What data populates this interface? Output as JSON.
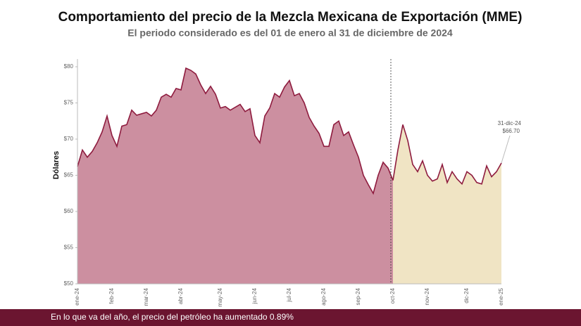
{
  "chart_data": {
    "type": "area",
    "title": "Comportamiento del precio de la Mezcla Mexicana de Exportación (MME)",
    "subtitle": "El periodo considerado es del 01 de enero al 31 de diciembre de 2024",
    "y_label": "Dólares",
    "categories": [
      "ene-24",
      null,
      null,
      null,
      null,
      null,
      null,
      "feb-24",
      null,
      null,
      null,
      null,
      null,
      null,
      "mar-24",
      null,
      null,
      null,
      null,
      null,
      null,
      "abr-24",
      null,
      null,
      null,
      null,
      null,
      null,
      null,
      "may-24",
      null,
      null,
      null,
      null,
      null,
      null,
      "jun-24",
      null,
      null,
      null,
      null,
      null,
      null,
      "jul-24",
      null,
      null,
      null,
      null,
      null,
      null,
      "ago-24",
      null,
      null,
      null,
      null,
      null,
      null,
      "sep-24",
      null,
      null,
      null,
      null,
      null,
      null,
      "oct-24",
      null,
      null,
      null,
      null,
      null,
      null,
      "nov-24",
      null,
      null,
      null,
      null,
      null,
      null,
      null,
      "dic-24",
      null,
      null,
      null,
      null,
      null,
      null,
      "ene-25"
    ],
    "series": [
      {
        "color": "#8e1b3e",
        "fill": "#cc8fa0",
        "values": [
          66.2,
          68.5,
          67.5,
          68.3,
          69.5,
          71,
          73.2,
          70.5,
          69,
          71.8,
          72,
          74,
          73.3,
          73.5,
          73.7,
          73.2,
          74,
          75.8,
          76.2,
          75.8,
          77,
          76.8,
          79.8,
          79.5,
          79,
          77.5,
          76.3,
          77.3,
          76.2,
          74.3,
          74.5,
          74,
          74.4,
          74.8,
          73.8,
          74.2,
          70.5,
          69.5,
          73.2,
          74.3,
          76.3,
          75.8,
          77.2,
          78.1,
          76,
          76.3,
          75,
          73,
          71.8,
          70.8,
          69,
          69,
          72,
          72.5,
          70.5,
          71,
          69.2,
          67.5,
          65,
          63.7,
          62.5,
          65,
          66.8,
          66,
          64.3,
          null,
          null,
          null,
          null,
          null,
          null,
          null,
          null,
          null,
          null,
          null,
          null,
          null,
          null,
          null,
          null,
          null,
          null,
          null,
          null,
          null,
          null
        ]
      },
      {
        "color": "#8e1b3e",
        "fill": "#f0e4c4",
        "values": [
          null,
          null,
          null,
          null,
          null,
          null,
          null,
          null,
          null,
          null,
          null,
          null,
          null,
          null,
          null,
          null,
          null,
          null,
          null,
          null,
          null,
          null,
          null,
          null,
          null,
          null,
          null,
          null,
          null,
          null,
          null,
          null,
          null,
          null,
          null,
          null,
          null,
          null,
          null,
          null,
          null,
          null,
          null,
          null,
          null,
          null,
          null,
          null,
          null,
          null,
          null,
          null,
          null,
          null,
          null,
          null,
          null,
          null,
          null,
          null,
          null,
          null,
          null,
          null,
          64.3,
          68.5,
          72,
          69.8,
          66.5,
          65.5,
          67,
          65,
          64.2,
          64.5,
          66.5,
          64,
          65.5,
          64.5,
          63.8,
          65.5,
          65,
          64,
          63.8,
          66.3,
          64.8,
          65.5,
          66.7
        ]
      }
    ],
    "ylim": [
      50,
      80
    ],
    "yticks": [
      {
        "value": 50,
        "label": "$50"
      },
      {
        "value": 55,
        "label": "$55"
      },
      {
        "value": 60,
        "label": "$60"
      },
      {
        "value": 65,
        "label": "$65"
      },
      {
        "value": 70,
        "label": "$70"
      },
      {
        "value": 75,
        "label": "$75"
      },
      {
        "value": 80,
        "label": "$80"
      }
    ],
    "grid": false,
    "annotation": {
      "date": "31-dic-24",
      "label": "$66.70"
    }
  },
  "footer": "En lo que va del año, el precio del petróleo ha aumentado 0.89%"
}
